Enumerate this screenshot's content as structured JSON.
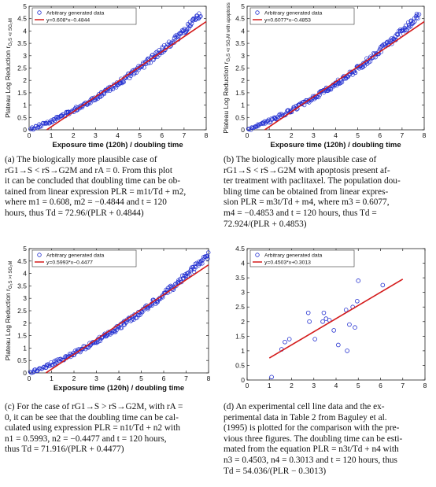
{
  "chart_data": [
    {
      "id": "a",
      "type": "scatter",
      "xlabel": "Exposure time (120h) / doubling time",
      "ylabel": "Plateau Log Reduction r",
      "ylabel_sub": "G₁S <r SG₂M",
      "xlim": [
        0,
        8
      ],
      "ylim": [
        0,
        5
      ],
      "xticks": [
        0,
        1,
        2,
        3,
        4,
        5,
        6,
        7,
        8
      ],
      "yticks": [
        0,
        0.5,
        1,
        1.5,
        2,
        2.5,
        3,
        3.5,
        4,
        4.5,
        5
      ],
      "legend": [
        "Arbitrary generated data",
        "y=0.608*x−0.4844"
      ],
      "legend_position": "top-left",
      "fit": {
        "slope": 0.608,
        "intercept": -0.4844,
        "x_range": [
          0.8,
          8
        ]
      },
      "curve": {
        "x_start": 0.05,
        "x_end": 7.75,
        "y_start": 0.02,
        "y_end": 4.63
      },
      "color_points": "#1f2ccf",
      "color_line": "#d41b1b"
    },
    {
      "id": "b",
      "type": "scatter",
      "xlabel": "Exposure time (120h) / doubling time",
      "ylabel": "Plateau Log Reduction r",
      "ylabel_sub": "G₁S <r SG₂M with apoptosis",
      "xlim": [
        0,
        8
      ],
      "ylim": [
        0,
        5
      ],
      "xticks": [
        0,
        1,
        2,
        3,
        4,
        5,
        6,
        7,
        8
      ],
      "yticks": [
        0,
        0.5,
        1,
        1.5,
        2,
        2.5,
        3,
        3.5,
        4,
        4.5,
        5
      ],
      "legend": [
        "Arbitrary generated data",
        "y=0.6077*x−0.4853"
      ],
      "legend_position": "top-left",
      "fit": {
        "slope": 0.6077,
        "intercept": -0.4853,
        "x_range": [
          0.8,
          8
        ]
      },
      "curve": {
        "x_start": 0.05,
        "x_end": 7.75,
        "y_start": 0.02,
        "y_end": 4.62
      },
      "color_points": "#1f2ccf",
      "color_line": "#d41b1b"
    },
    {
      "id": "c",
      "type": "scatter",
      "xlabel": "Exposure time (120h) / doubling time",
      "ylabel": "Plateau Log Reduction r",
      "ylabel_sub": "G₁S >r SG₂M",
      "xlim": [
        0,
        8
      ],
      "ylim": [
        0,
        5
      ],
      "xticks": [
        0,
        1,
        2,
        3,
        4,
        5,
        6,
        7,
        8
      ],
      "yticks": [
        0,
        0.5,
        1,
        1.5,
        2,
        2.5,
        3,
        3.5,
        4,
        4.5,
        5
      ],
      "legend": [
        "Arbitrary generated data",
        "y=0.5993*x−0.4477"
      ],
      "legend_position": "top-left",
      "fit": {
        "slope": 0.5993,
        "intercept": -0.4477,
        "x_range": [
          0.75,
          8
        ]
      },
      "curve": {
        "x_start": 0.05,
        "x_end": 8.0,
        "y_start": 0.02,
        "y_end": 4.75
      },
      "color_points": "#1f2ccf",
      "color_line": "#d41b1b"
    },
    {
      "id": "d",
      "type": "scatter",
      "xlabel": "",
      "ylabel": "",
      "xlim": [
        0,
        8
      ],
      "ylim": [
        0,
        4.5
      ],
      "xticks": [
        0,
        1,
        2,
        3,
        4,
        5,
        6,
        7,
        8
      ],
      "yticks": [
        0,
        0.5,
        1,
        1.5,
        2,
        2.5,
        3,
        3.5,
        4,
        4.5
      ],
      "legend": [
        "Arbitrary generated data",
        "y=0.4503*x+0.3013"
      ],
      "legend_position": "top-left",
      "fit": {
        "slope": 0.4503,
        "intercept": 0.3013,
        "x_range": [
          1,
          7
        ]
      },
      "points": [
        {
          "x": 1.1,
          "y": 0.1
        },
        {
          "x": 1.55,
          "y": 1.05
        },
        {
          "x": 1.7,
          "y": 1.3
        },
        {
          "x": 1.9,
          "y": 1.4
        },
        {
          "x": 2.75,
          "y": 2.3
        },
        {
          "x": 2.8,
          "y": 2.0
        },
        {
          "x": 3.05,
          "y": 1.4
        },
        {
          "x": 3.4,
          "y": 2.0
        },
        {
          "x": 3.45,
          "y": 2.3
        },
        {
          "x": 3.55,
          "y": 2.1
        },
        {
          "x": 3.7,
          "y": 2.05
        },
        {
          "x": 3.9,
          "y": 1.7
        },
        {
          "x": 4.1,
          "y": 1.2
        },
        {
          "x": 4.45,
          "y": 2.4
        },
        {
          "x": 4.5,
          "y": 1.0
        },
        {
          "x": 4.6,
          "y": 1.9
        },
        {
          "x": 4.75,
          "y": 2.5
        },
        {
          "x": 4.85,
          "y": 1.8
        },
        {
          "x": 4.95,
          "y": 2.7
        },
        {
          "x": 5.0,
          "y": 3.4
        },
        {
          "x": 6.1,
          "y": 3.25
        }
      ],
      "color_points": "#1f2ccf",
      "color_line": "#d41b1b"
    }
  ],
  "captions": {
    "a": {
      "label": "(a)",
      "lines": [
        "(a)  The biologically more plausible case of",
        "rG1→S < rS→G2M and rA = 0. From this plot",
        "it can be concluded that doubling time can be ob-",
        "tained from linear expression PLR = m1t/Td + m2,",
        "where m1 = 0.608, m2 = −0.4844 and t = 120",
        "hours, thus Td = 72.96/(PLR + 0.4844)"
      ]
    },
    "b": {
      "label": "(b)",
      "lines": [
        "(b)  The biologically more plausible case of",
        "rG1→S < rS→G2M with apoptosis present af-",
        "ter treatment with paclitaxel. The population dou-",
        "bling time can be obtained from linear expres-",
        "sion PLR = m3t/Td + m4, where m3 = 0.6077,",
        "m4 = −0.4853 and t = 120 hours, thus Td =",
        "72.924/(PLR + 0.4853)"
      ]
    },
    "c": {
      "label": "(c)",
      "lines": [
        "(c) For the case of rG1→S > rS→G2M, with rA =",
        "0, it can be see that the doubling time can be cal-",
        "culated using expression PLR = n1t/Td + n2 with",
        "n1 = 0.5993, n2 = −0.4477 and t = 120 hours,",
        "thus Td = 71.916/(PLR + 0.4477)"
      ]
    },
    "d": {
      "label": "(d)",
      "lines": [
        "(d)  An experimental cell line data and the ex-",
        "perimental data in Table 2 from Baguley et al.",
        "(1995) is plotted for the comparison with the pre-",
        "vious three figures. The doubling time can be esti-",
        "mated from the equation PLR = n3t/Td + n4 with",
        "n3 = 0.4503, n4 = 0.3013 and t = 120 hours, thus",
        "Td = 54.036/(PLR − 0.3013)"
      ]
    }
  }
}
